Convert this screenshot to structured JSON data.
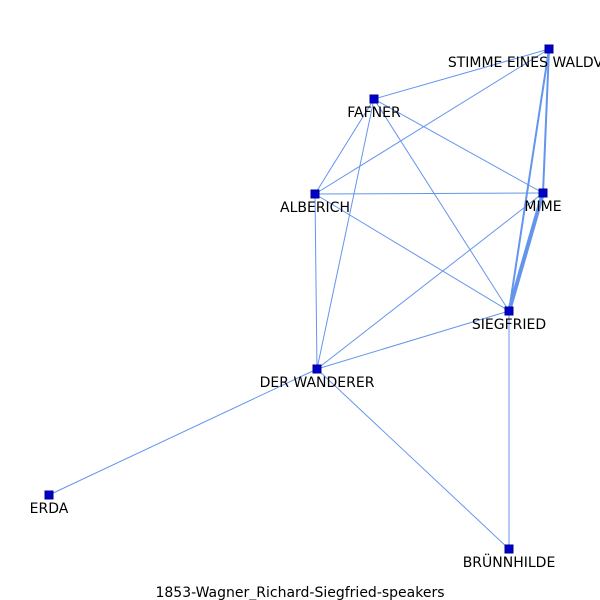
{
  "caption": "1853-Wagner_Richard-Siegfried-speakers",
  "colors": {
    "edge": "#6495ED",
    "node_fill": "#0000CD",
    "node_stroke": "#00008B",
    "label": "#000000",
    "background": "#FFFFFF"
  },
  "nodes": [
    {
      "id": "stimme",
      "label": "STIMME EINES WALDVOGELS"
    },
    {
      "id": "fafner",
      "label": "FAFNER"
    },
    {
      "id": "alberich",
      "label": "ALBERICH"
    },
    {
      "id": "mime",
      "label": "MIME"
    },
    {
      "id": "siegfried",
      "label": "SIEGFRIED"
    },
    {
      "id": "wanderer",
      "label": "DER WANDERER"
    },
    {
      "id": "erda",
      "label": "ERDA"
    },
    {
      "id": "brunnhilde",
      "label": "BRÜNNHILDE"
    }
  ],
  "edges": [
    {
      "source": "stimme",
      "target": "fafner",
      "weight": 1
    },
    {
      "source": "stimme",
      "target": "alberich",
      "weight": 1
    },
    {
      "source": "stimme",
      "target": "mime",
      "weight": 2
    },
    {
      "source": "stimme",
      "target": "siegfried",
      "weight": 2
    },
    {
      "source": "fafner",
      "target": "alberich",
      "weight": 1
    },
    {
      "source": "fafner",
      "target": "mime",
      "weight": 1
    },
    {
      "source": "fafner",
      "target": "siegfried",
      "weight": 1
    },
    {
      "source": "fafner",
      "target": "wanderer",
      "weight": 1
    },
    {
      "source": "alberich",
      "target": "mime",
      "weight": 1
    },
    {
      "source": "alberich",
      "target": "siegfried",
      "weight": 1
    },
    {
      "source": "alberich",
      "target": "wanderer",
      "weight": 1
    },
    {
      "source": "mime",
      "target": "siegfried",
      "weight": 4
    },
    {
      "source": "mime",
      "target": "wanderer",
      "weight": 1
    },
    {
      "source": "siegfried",
      "target": "wanderer",
      "weight": 1
    },
    {
      "source": "siegfried",
      "target": "brunnhilde",
      "weight": 1
    },
    {
      "source": "wanderer",
      "target": "erda",
      "weight": 1
    },
    {
      "source": "wanderer",
      "target": "brunnhilde",
      "weight": 1
    }
  ]
}
